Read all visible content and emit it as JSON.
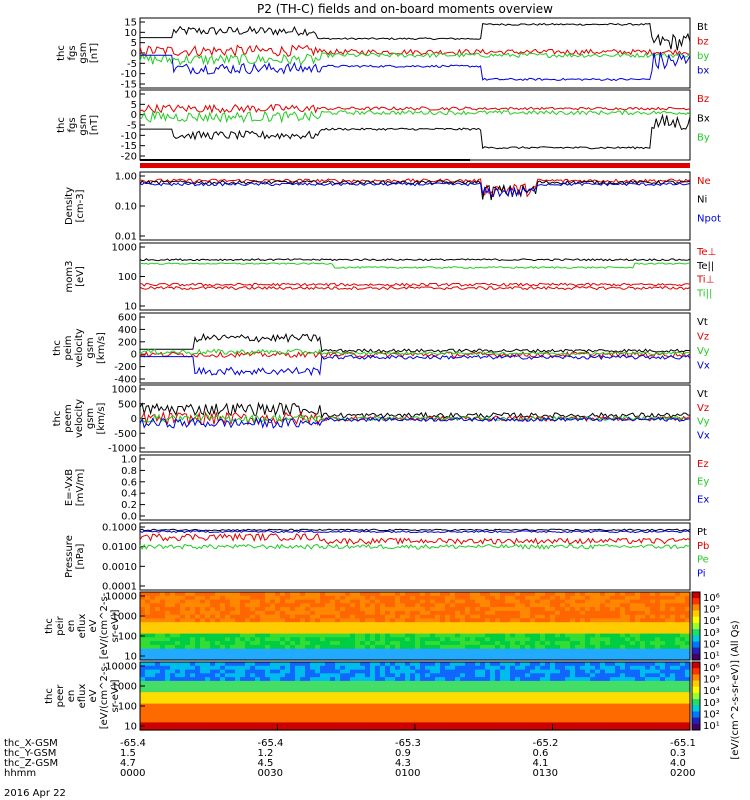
{
  "title": "P2 (TH-C) fields and on-board moments overview",
  "date": "2016 Apr 22",
  "colors": {
    "black": "#000000",
    "red": "#e00000",
    "green": "#22cc22",
    "blue": "#0000dd"
  },
  "xaxis": {
    "rows": [
      {
        "label": "thc_X-GSM",
        "values": [
          "-65.4",
          "-65.4",
          "-65.3",
          "-65.2",
          "-65.1"
        ]
      },
      {
        "label": "thc_Y-GSM",
        "values": [
          "1.5",
          "1.2",
          "0.9",
          "0.6",
          "0.3"
        ]
      },
      {
        "label": "thc_Z-GSM",
        "values": [
          "4.7",
          "4.5",
          "4.3",
          "4.1",
          "4.0"
        ]
      },
      {
        "label": "hhmm",
        "values": [
          "0000",
          "0030",
          "0100",
          "0130",
          "0200"
        ]
      }
    ]
  },
  "colorbar": {
    "label": "[eV/(cm^2-s-sr-eV)] (All Qs)",
    "top_ticks": [
      "10^6",
      "10^5",
      "10^4",
      "10^3",
      "10^2",
      "10^1"
    ],
    "bottom_ticks": [
      "10^6",
      "10^5",
      "10^4",
      "10^3",
      "10^2",
      "10^1"
    ]
  },
  "chart_data": [
    {
      "type": "line",
      "ylabel": [
        "thc",
        "fgs",
        "gsm",
        "[nT]"
      ],
      "ylim": [
        -15,
        15
      ],
      "yticks": [
        "15",
        "10",
        "5",
        "0",
        "-5",
        "-10",
        "-15"
      ],
      "series": [
        {
          "name": "Bt",
          "color": "#000000"
        },
        {
          "name": "bz",
          "color": "#e00000"
        },
        {
          "name": "by",
          "color": "#22cc22"
        },
        {
          "name": "bx",
          "color": "#0000dd"
        }
      ],
      "x": [
        "0000",
        "0030",
        "0100",
        "0130",
        "0200"
      ]
    },
    {
      "type": "line",
      "ylabel": [
        "thc",
        "fgs",
        "gsm",
        "[nT]"
      ],
      "ylim": [
        -22,
        10
      ],
      "yticks": [
        "10",
        "5",
        "0",
        "-5",
        "-10",
        "-15",
        "-20"
      ],
      "series": [
        {
          "name": "Bz",
          "color": "#e00000"
        },
        {
          "name": "Bx",
          "color": "#000000"
        },
        {
          "name": "By",
          "color": "#22cc22"
        }
      ]
    },
    {
      "type": "line",
      "ylabel": [
        "Density",
        "[cm-3]"
      ],
      "scale": "log",
      "ylim": [
        0.01,
        1.0
      ],
      "yticks": [
        "1.00",
        "0.10",
        "0.01"
      ],
      "series": [
        {
          "name": "Ne",
          "color": "#e00000"
        },
        {
          "name": "Ni",
          "color": "#000000"
        },
        {
          "name": "Npot",
          "color": "#0000dd"
        }
      ]
    },
    {
      "type": "line",
      "ylabel": [
        "mom3",
        "[eV]"
      ],
      "scale": "log",
      "ylim": [
        10,
        10000
      ],
      "yticks": [
        "1000",
        "100",
        "10"
      ],
      "series": [
        {
          "name": "Te⊥",
          "color": "#e00000"
        },
        {
          "name": "Te||",
          "color": "#000000"
        },
        {
          "name": "Ti⊥",
          "color": "#e00000"
        },
        {
          "name": "Ti||",
          "color": "#22cc22"
        }
      ]
    },
    {
      "type": "line",
      "ylabel": [
        "thc",
        "peim",
        "velocity",
        "gsm",
        "[km/s]"
      ],
      "ylim": [
        -400,
        600
      ],
      "yticks": [
        "600",
        "400",
        "200",
        "0",
        "-200",
        "-400"
      ],
      "series": [
        {
          "name": "Vt",
          "color": "#000000"
        },
        {
          "name": "Vz",
          "color": "#e00000"
        },
        {
          "name": "Vy",
          "color": "#22cc22"
        },
        {
          "name": "Vx",
          "color": "#0000dd"
        }
      ]
    },
    {
      "type": "line",
      "ylabel": [
        "thc",
        "peem",
        "velocity",
        "gsm",
        "[km/s]"
      ],
      "ylim": [
        -1000,
        1000
      ],
      "yticks": [
        "1000",
        "500",
        "0",
        "-500",
        "-1000"
      ],
      "series": [
        {
          "name": "Vt",
          "color": "#000000"
        },
        {
          "name": "Vz",
          "color": "#e00000"
        },
        {
          "name": "Vy",
          "color": "#22cc22"
        },
        {
          "name": "Vx",
          "color": "#0000dd"
        }
      ]
    },
    {
      "type": "line",
      "ylabel": [
        "E=-VxB",
        "[mV/m]"
      ],
      "ylim": [
        0.0,
        1.0
      ],
      "yticks": [
        "1.0",
        "0.8",
        "0.6",
        "0.4",
        "0.2",
        "0.0"
      ],
      "series": [
        {
          "name": "Ez",
          "color": "#e00000"
        },
        {
          "name": "Ey",
          "color": "#22cc22"
        },
        {
          "name": "Ex",
          "color": "#0000dd"
        }
      ]
    },
    {
      "type": "line",
      "ylabel": [
        "Pressure",
        "[nPa]"
      ],
      "scale": "log",
      "ylim": [
        0.0001,
        0.2
      ],
      "yticks": [
        "0.1000",
        "0.0100",
        "0.0010",
        "0.0001"
      ],
      "series": [
        {
          "name": "Pt",
          "color": "#000000"
        },
        {
          "name": "Pb",
          "color": "#e00000"
        },
        {
          "name": "Pe",
          "color": "#22cc22"
        },
        {
          "name": "Pi",
          "color": "#0000dd"
        }
      ]
    },
    {
      "type": "heatmap",
      "ylabel": [
        "thc",
        "peir",
        "en",
        "eflux",
        "eV",
        "[eV/(cm^2-s-",
        "sr-eV)]"
      ],
      "scale": "log",
      "ylim": [
        10,
        20000
      ],
      "yticks": [
        "10000",
        "1000",
        "100",
        "10"
      ]
    },
    {
      "type": "heatmap",
      "ylabel": [
        "thc",
        "peer",
        "en",
        "eflux",
        "eV",
        "[eV/(cm^2-s-",
        "sr-eV)]"
      ],
      "scale": "log",
      "ylim": [
        10,
        20000
      ],
      "yticks": [
        "10000",
        "1000",
        "100",
        "10"
      ]
    }
  ]
}
